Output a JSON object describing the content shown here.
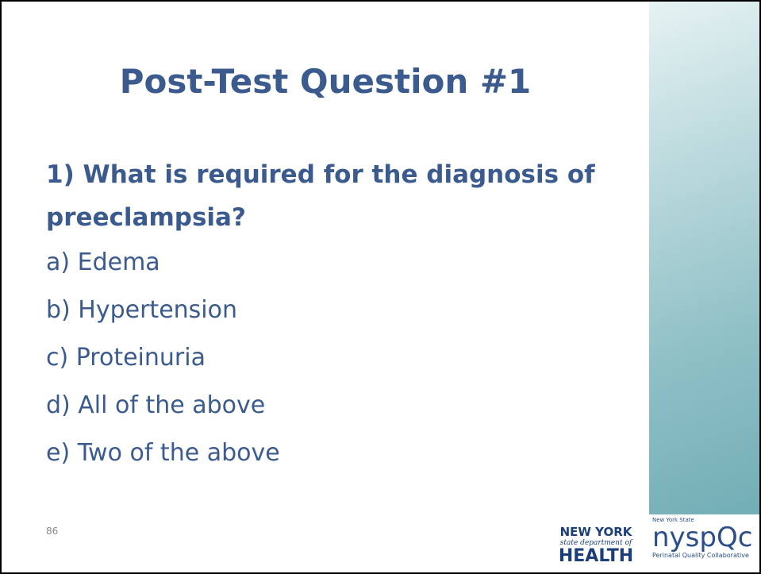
{
  "slide": {
    "title": "Post-Test Question #1",
    "question_lines": [
      "1) What is required for the diagnosis of",
      "preeclampsia?"
    ],
    "options": [
      "a) Edema",
      "b) Hypertension",
      "c) Proteinuria",
      "d) All of the above",
      "e) Two of the above"
    ],
    "page_number": "86",
    "logos": {
      "nys_health": {
        "line1": "NEW YORK",
        "line2": "state department of",
        "line3": "HEALTH"
      },
      "nyspqc": {
        "small": "New York State",
        "name": "nyspQc",
        "tagline": "Perinatal Quality Collaborative"
      }
    }
  }
}
